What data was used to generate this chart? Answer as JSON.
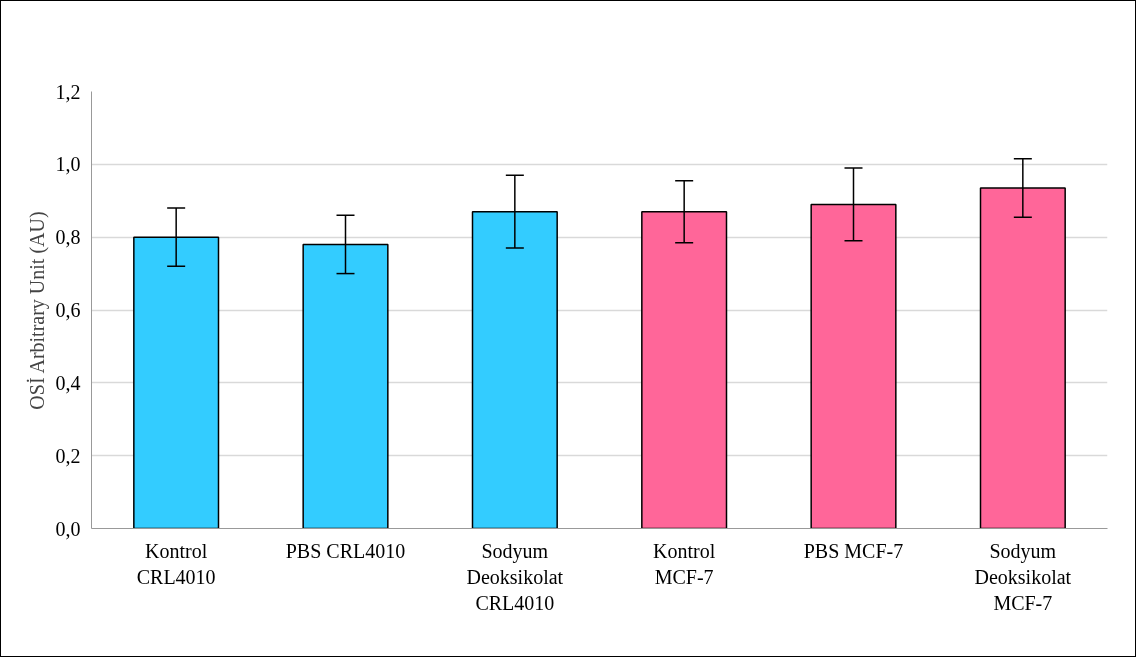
{
  "chart_data": {
    "type": "bar",
    "ylabel": "OSİ Arbitrary Unit (AU)",
    "categories": [
      "Kontrol CRL4010",
      "PBS CRL4010",
      "Sodyum Deoksikolat CRL4010",
      "Kontrol MCF-7",
      "PBS MCF-7",
      "Sodyum Deoksikolat MCF-7"
    ],
    "values": [
      0.8,
      0.78,
      0.87,
      0.87,
      0.89,
      0.935
    ],
    "errors": [
      0.08,
      0.08,
      0.1,
      0.085,
      0.1,
      0.08
    ],
    "colors": [
      "#33ccff",
      "#33ccff",
      "#33ccff",
      "#ff6699",
      "#ff6699",
      "#ff6699"
    ],
    "ylim": [
      0,
      1.2
    ],
    "yticks": [
      {
        "value": 0,
        "label": "0,0"
      },
      {
        "value": 0.2,
        "label": "0,2"
      },
      {
        "value": 0.4,
        "label": "0,4"
      },
      {
        "value": 0.6,
        "label": "0,6"
      },
      {
        "value": 0.8,
        "label": "0,8"
      },
      {
        "value": 1.0,
        "label": "1,0"
      },
      {
        "value": 1.2,
        "label": "1,2"
      }
    ],
    "grid": "y"
  }
}
